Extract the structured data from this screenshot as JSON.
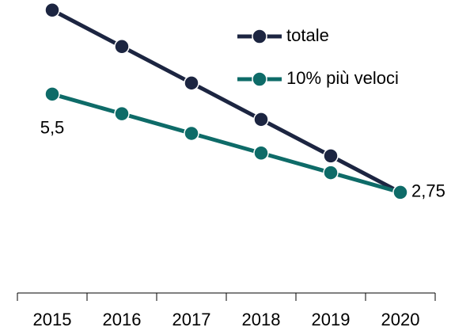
{
  "chart_data": {
    "type": "line",
    "categories": [
      "2015",
      "2016",
      "2017",
      "2018",
      "2019",
      "2020"
    ],
    "series": [
      {
        "name": "totale",
        "color": "#1c2541",
        "values": [
          7.85,
          6.83,
          5.81,
          4.79,
          3.77,
          2.75
        ]
      },
      {
        "name": "10% più veloci",
        "color": "#0e6b68",
        "values": [
          5.5,
          4.95,
          4.4,
          3.85,
          3.3,
          2.75
        ],
        "value_labels": [
          "5,5",
          null,
          null,
          null,
          null,
          "2,75"
        ]
      }
    ],
    "ylim": [
      0,
      8
    ],
    "legend": "upper right"
  }
}
